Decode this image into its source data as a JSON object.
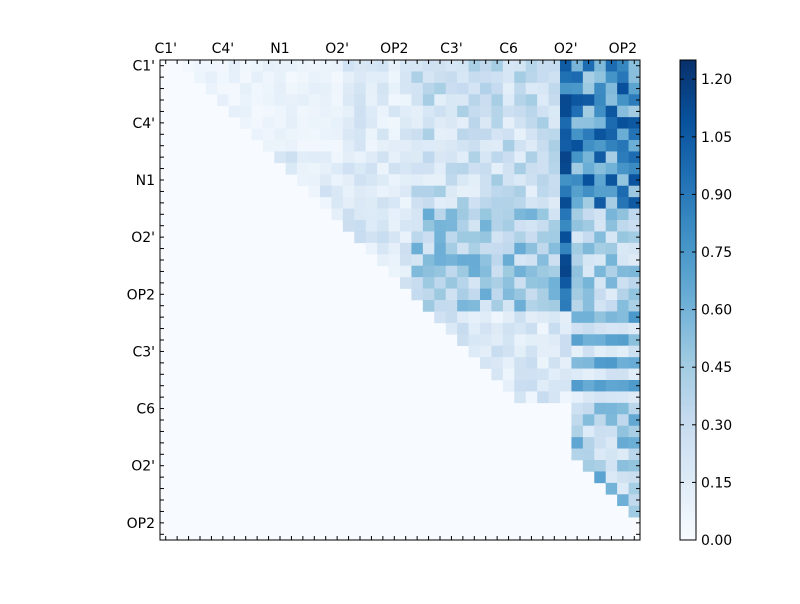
{
  "chart_data": {
    "type": "heatmap",
    "title": "",
    "xlabel": "",
    "ylabel": "",
    "n_rows": 42,
    "n_cols": 42,
    "colormap": "Blues",
    "colorbar_range": [
      0.0,
      1.25
    ],
    "colorbar_ticks": [
      "0.00",
      "0.15",
      "0.30",
      "0.45",
      "0.60",
      "0.75",
      "0.90",
      "1.05",
      "1.20"
    ],
    "colorbar_tick_values": [
      0.0,
      0.15,
      0.3,
      0.45,
      0.6,
      0.75,
      0.9,
      1.05,
      1.2
    ],
    "x_tick_labels": [
      {
        "index": 0,
        "label": "C1'"
      },
      {
        "index": 5,
        "label": "C4'"
      },
      {
        "index": 10,
        "label": "N1"
      },
      {
        "index": 15,
        "label": "O2'"
      },
      {
        "index": 20,
        "label": "OP2"
      },
      {
        "index": 25,
        "label": "C3'"
      },
      {
        "index": 30,
        "label": "C6"
      },
      {
        "index": 35,
        "label": "O2'"
      },
      {
        "index": 40,
        "label": "OP2"
      }
    ],
    "y_tick_labels": [
      {
        "index": 0,
        "label": "C1'"
      },
      {
        "index": 5,
        "label": "C4'"
      },
      {
        "index": 10,
        "label": "N1"
      },
      {
        "index": 15,
        "label": "O2'"
      },
      {
        "index": 20,
        "label": "OP2"
      },
      {
        "index": 25,
        "label": "C3'"
      },
      {
        "index": 30,
        "label": "C6"
      },
      {
        "index": 35,
        "label": "O2'"
      },
      {
        "index": 40,
        "label": "OP2"
      }
    ],
    "colors": {
      "low": "#f7fbff",
      "high": "#08306b"
    }
  }
}
